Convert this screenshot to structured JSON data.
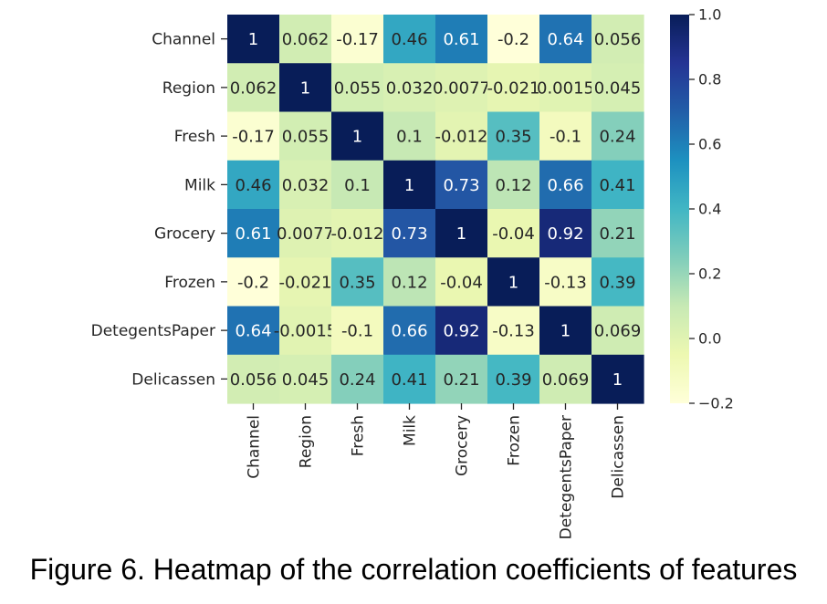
{
  "chart_data": {
    "type": "heatmap",
    "title": "",
    "xlabel": "",
    "ylabel": "",
    "rows": [
      "Channel",
      "Region",
      "Fresh",
      "Milk",
      "Grocery",
      "Frozen",
      "DetegentsPaper",
      "Delicassen"
    ],
    "columns": [
      "Channel",
      "Region",
      "Fresh",
      "Milk",
      "Grocery",
      "Frozen",
      "DetegentsPaper",
      "Delicassen"
    ],
    "values": [
      [
        1,
        0.062,
        -0.17,
        0.46,
        0.61,
        -0.2,
        0.64,
        0.056
      ],
      [
        0.062,
        1,
        0.055,
        0.032,
        0.0077,
        -0.021,
        0.0015,
        0.045
      ],
      [
        -0.17,
        0.055,
        1,
        0.1,
        -0.012,
        0.35,
        -0.1,
        0.24
      ],
      [
        0.46,
        0.032,
        0.1,
        1,
        0.73,
        0.12,
        0.66,
        0.41
      ],
      [
        0.61,
        0.0077,
        -0.012,
        0.73,
        1,
        -0.04,
        0.92,
        0.21
      ],
      [
        -0.2,
        -0.021,
        0.35,
        0.12,
        -0.04,
        1,
        -0.13,
        0.39
      ],
      [
        0.64,
        -0.0015,
        -0.1,
        0.66,
        0.92,
        -0.13,
        1,
        0.069
      ],
      [
        0.056,
        0.045,
        0.24,
        0.41,
        0.21,
        0.39,
        0.069,
        1
      ]
    ],
    "labels": [
      [
        "1",
        "0.062",
        "-0.17",
        "0.46",
        "0.61",
        "-0.2",
        "0.64",
        "0.056"
      ],
      [
        "0.062",
        "1",
        "0.055",
        "0.032",
        "0.0077",
        "-0.021",
        "0.0015",
        "0.045"
      ],
      [
        "-0.17",
        "0.055",
        "1",
        "0.1",
        "-0.012",
        "0.35",
        "-0.1",
        "0.24"
      ],
      [
        "0.46",
        "0.032",
        "0.1",
        "1",
        "0.73",
        "0.12",
        "0.66",
        "0.41"
      ],
      [
        "0.61",
        "0.0077",
        "-0.012",
        "0.73",
        "1",
        "-0.04",
        "0.92",
        "0.21"
      ],
      [
        "-0.2",
        "-0.021",
        "0.35",
        "0.12",
        "-0.04",
        "1",
        "-0.13",
        "0.39"
      ],
      [
        "0.64",
        "-0.0015",
        "-0.1",
        "0.66",
        "0.92",
        "-0.13",
        "1",
        "0.069"
      ],
      [
        "0.056",
        "0.045",
        "0.24",
        "0.41",
        "0.21",
        "0.39",
        "0.069",
        "1"
      ]
    ],
    "colormap": "YlGnBu",
    "colormap_stops": [
      "#ffffd9",
      "#edf8b1",
      "#c7e9b4",
      "#7fcdbb",
      "#41b6c4",
      "#1d91c0",
      "#225ea8",
      "#253494",
      "#081d58"
    ],
    "vmin": -0.2,
    "vmax": 1.0,
    "colorbar_ticks": [
      1.0,
      0.8,
      0.6,
      0.4,
      0.2,
      0.0,
      -0.2
    ],
    "colorbar_tick_labels": [
      "1.0",
      "0.8",
      "0.6",
      "0.4",
      "0.2",
      "0.0",
      "−0.2"
    ]
  },
  "caption": "Figure 6. Heatmap of the correlation coefficients of features"
}
